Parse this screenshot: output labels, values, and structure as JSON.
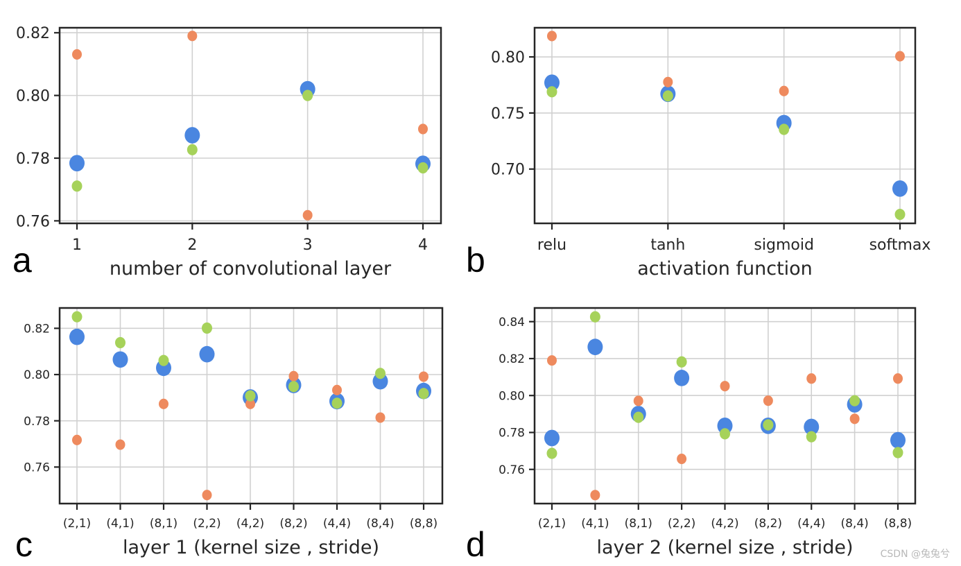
{
  "series_colors": {
    "blue": "#4A86E0",
    "orange": "#EE8A5E",
    "green": "#A6D25A"
  },
  "watermark": "CSDN @兔兔兮",
  "chart_data": [
    {
      "type": "scatter",
      "panel": "a",
      "xlabel": "number of convolutional layer",
      "ylabel": "",
      "title": "",
      "categories": [
        "1",
        "2",
        "3",
        "4"
      ],
      "ylim": [
        0.7592,
        0.8216
      ],
      "yticks": [
        0.76,
        0.78,
        0.8,
        0.82
      ],
      "ytick_labels": [
        "0.76",
        "0.78",
        "0.80",
        "0.82"
      ],
      "grid": true,
      "series": [
        {
          "name": "blue",
          "color": "#4A86E0",
          "values": [
            0.7784,
            0.7873,
            0.802,
            0.7782
          ]
        },
        {
          "name": "orange",
          "color": "#EE8A5E",
          "values": [
            0.8131,
            0.819,
            0.7618,
            0.7893
          ]
        },
        {
          "name": "green",
          "color": "#A6D25A",
          "values": [
            0.7711,
            0.7827,
            0.8,
            0.7769
          ]
        }
      ]
    },
    {
      "type": "scatter",
      "panel": "b",
      "xlabel": "activation function",
      "ylabel": "",
      "title": "",
      "categories": [
        "relu",
        "tanh",
        "sigmoid",
        "softmax"
      ],
      "ylim": [
        0.6516,
        0.826
      ],
      "yticks": [
        0.7,
        0.75,
        0.8
      ],
      "ytick_labels": [
        "0.70",
        "0.75",
        "0.80"
      ],
      "grid": true,
      "series": [
        {
          "name": "blue",
          "color": "#4A86E0",
          "values": [
            0.777,
            0.7671,
            0.741,
            0.6826
          ]
        },
        {
          "name": "orange",
          "color": "#EE8A5E",
          "values": [
            0.8186,
            0.7776,
            0.7696,
            0.8006
          ]
        },
        {
          "name": "green",
          "color": "#A6D25A",
          "values": [
            0.7689,
            0.7652,
            0.7354,
            0.6596
          ]
        }
      ]
    },
    {
      "type": "scatter",
      "panel": "c",
      "xlabel": "layer 1 (kernel size , stride)",
      "ylabel": "",
      "title": "",
      "categories": [
        "(2,1)",
        "(4,1)",
        "(8,1)",
        "(2,2)",
        "(4,2)",
        "(8,2)",
        "(4,4)",
        "(8,4)",
        "(8,8)"
      ],
      "ylim": [
        0.7442,
        0.8288
      ],
      "yticks": [
        0.76,
        0.78,
        0.8,
        0.82
      ],
      "ytick_labels": [
        "0.76",
        "0.78",
        "0.80",
        "0.82"
      ],
      "grid": true,
      "series": [
        {
          "name": "blue",
          "color": "#4A86E0",
          "values": [
            0.8163,
            0.8065,
            0.8029,
            0.8088,
            0.7901,
            0.7955,
            0.7885,
            0.7971,
            0.7929
          ]
        },
        {
          "name": "orange",
          "color": "#EE8A5E",
          "values": [
            0.7717,
            0.7697,
            0.7873,
            0.7479,
            0.7873,
            0.7993,
            0.7933,
            0.7814,
            0.7991
          ]
        },
        {
          "name": "green",
          "color": "#A6D25A",
          "values": [
            0.825,
            0.8138,
            0.8061,
            0.8201,
            0.7908,
            0.7948,
            0.7876,
            0.8005,
            0.7918
          ]
        }
      ]
    },
    {
      "type": "scatter",
      "panel": "d",
      "xlabel": "layer 2 (kernel size , stride)",
      "ylabel": "",
      "title": "",
      "categories": [
        "(2,1)",
        "(4,1)",
        "(8,1)",
        "(2,2)",
        "(4,2)",
        "(8,2)",
        "(4,4)",
        "(8,4)",
        "(8,8)"
      ],
      "ylim": [
        0.7415,
        0.8474
      ],
      "yticks": [
        0.76,
        0.78,
        0.8,
        0.82,
        0.84
      ],
      "ytick_labels": [
        "0.76",
        "0.78",
        "0.80",
        "0.82",
        "0.84"
      ],
      "grid": true,
      "series": [
        {
          "name": "blue",
          "color": "#4A86E0",
          "values": [
            0.777,
            0.8263,
            0.79,
            0.8095,
            0.7836,
            0.7836,
            0.783,
            0.7952,
            0.7758
          ]
        },
        {
          "name": "orange",
          "color": "#EE8A5E",
          "values": [
            0.819,
            0.7461,
            0.7971,
            0.7657,
            0.8051,
            0.7972,
            0.8092,
            0.7874,
            0.8092
          ]
        },
        {
          "name": "green",
          "color": "#A6D25A",
          "values": [
            0.7687,
            0.8426,
            0.7882,
            0.8182,
            0.7793,
            0.7841,
            0.7777,
            0.7972,
            0.7691
          ]
        }
      ]
    }
  ]
}
